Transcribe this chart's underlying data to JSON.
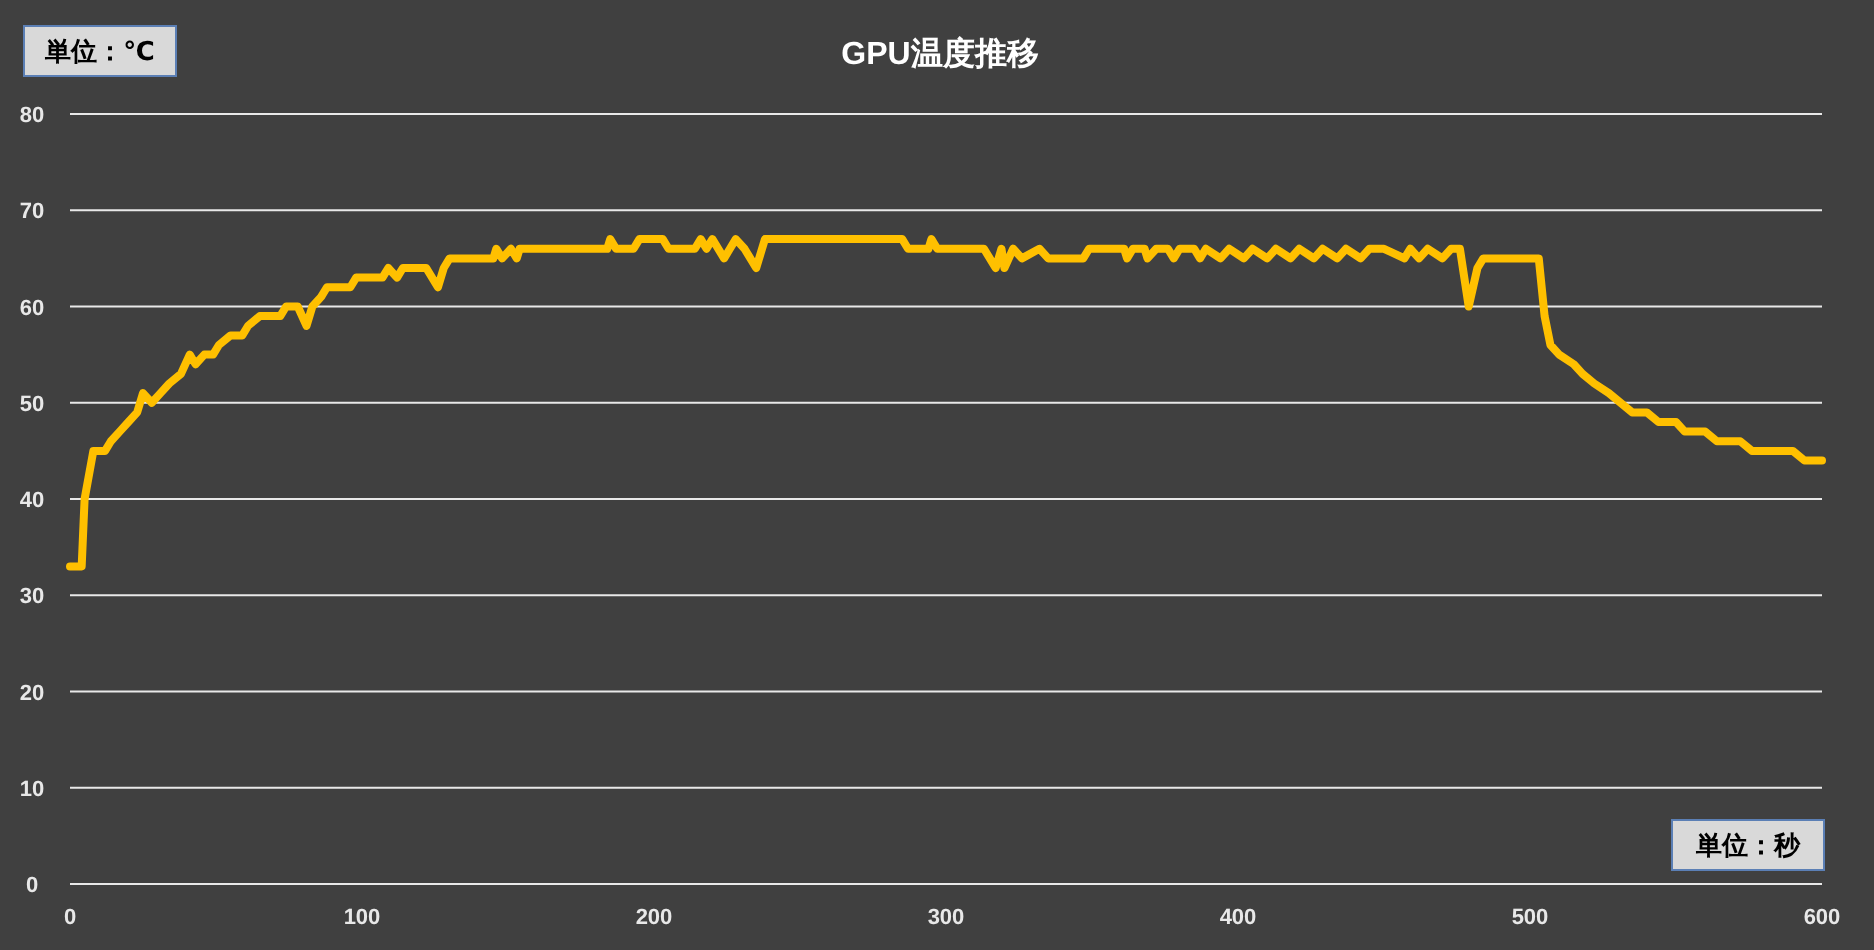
{
  "chart_data": {
    "type": "line",
    "title": "GPU温度推移",
    "annotations": [
      "単位：℃",
      "単位：秒"
    ],
    "color": "#ffc000",
    "grid": "y",
    "xlim": [
      0,
      600
    ],
    "xticks": [
      0,
      100,
      200,
      300,
      400,
      500,
      600
    ],
    "ylim": [
      0,
      80
    ],
    "yticks": [
      0,
      10,
      20,
      30,
      40,
      50,
      60,
      70,
      80
    ],
    "x": [
      0,
      4,
      5,
      8,
      12,
      14,
      17,
      20,
      23,
      25,
      28,
      31,
      34,
      38,
      41,
      43,
      46,
      49,
      51,
      55,
      59,
      61,
      65,
      72,
      74,
      78,
      81,
      83,
      86,
      88,
      96,
      98,
      107,
      109,
      112,
      114,
      122,
      126,
      128,
      130,
      145,
      146,
      148,
      151,
      153,
      154,
      184,
      185,
      187,
      193,
      195,
      203,
      205,
      214,
      216,
      218,
      220,
      224,
      226,
      228,
      231,
      235,
      238,
      243,
      285,
      287,
      294,
      295,
      297,
      313,
      317,
      319,
      320,
      323,
      326,
      332,
      335,
      347,
      349,
      361,
      362,
      364,
      368,
      369,
      372,
      376,
      378,
      380,
      385,
      387,
      389,
      394,
      397,
      402,
      405,
      410,
      413,
      418,
      421,
      426,
      429,
      434,
      437,
      442,
      445,
      450,
      457,
      459,
      462,
      465,
      470,
      473,
      476,
      479,
      482,
      484,
      503,
      505,
      507,
      510,
      515,
      518,
      522,
      527,
      535,
      540,
      544,
      550,
      553,
      560,
      564,
      572,
      576,
      590,
      594,
      600
    ],
    "values": [
      33,
      33,
      40,
      45,
      45,
      46,
      47,
      48,
      49,
      51,
      50,
      51,
      52,
      53,
      55,
      54,
      55,
      55,
      56,
      57,
      57,
      58,
      59,
      59,
      60,
      60,
      58,
      60,
      61,
      62,
      62,
      63,
      63,
      64,
      63,
      64,
      64,
      62,
      64,
      65,
      65,
      66,
      65,
      66,
      65,
      66,
      66,
      67,
      66,
      66,
      67,
      67,
      66,
      66,
      67,
      66,
      67,
      65,
      66,
      67,
      66,
      64,
      67,
      67,
      67,
      66,
      66,
      67,
      66,
      66,
      64,
      66,
      64,
      66,
      65,
      66,
      65,
      65,
      66,
      66,
      65,
      66,
      66,
      65,
      66,
      66,
      65,
      66,
      66,
      65,
      66,
      65,
      66,
      65,
      66,
      65,
      66,
      65,
      66,
      65,
      66,
      65,
      66,
      65,
      66,
      66,
      65,
      66,
      65,
      66,
      65,
      66,
      66,
      60,
      64,
      65,
      65,
      59,
      56,
      55,
      54,
      53,
      52,
      51,
      49,
      49,
      48,
      48,
      47,
      47,
      46,
      46,
      45,
      45,
      44,
      44
    ]
  }
}
